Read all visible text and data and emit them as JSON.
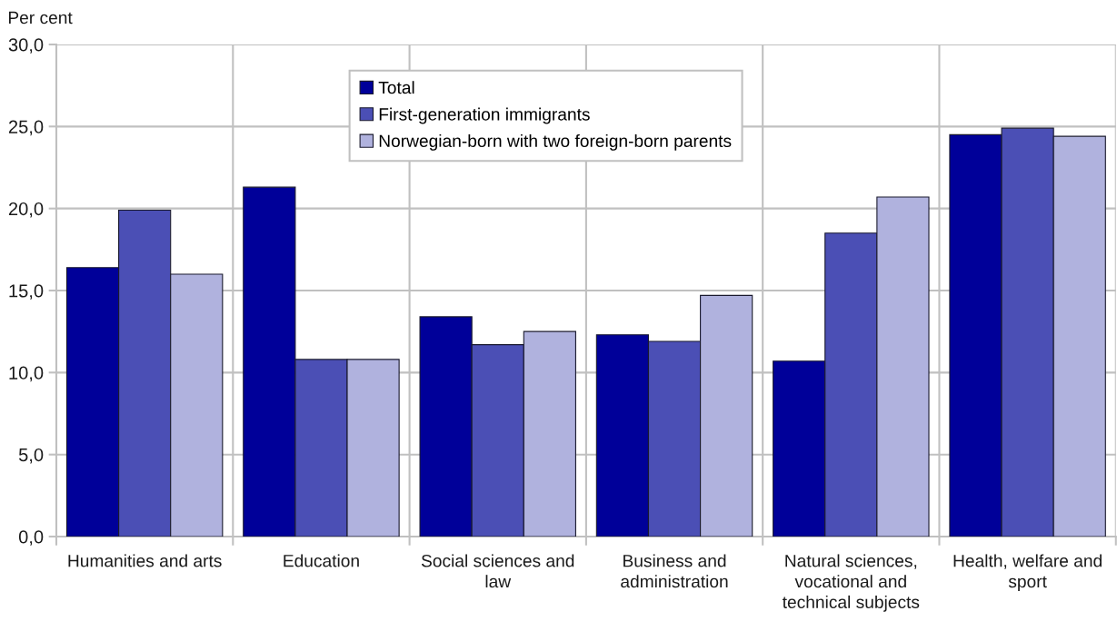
{
  "chart_data": {
    "type": "bar",
    "ylabel": "Per cent",
    "categories": [
      "Humanities and arts",
      "Education",
      "Social sciences and\nlaw",
      "Business and\nadministration",
      "Natural sciences,\nvocational and\ntechnical subjects",
      "Health, welfare and\nsport"
    ],
    "series": [
      {
        "name": "Total",
        "color": "#000099",
        "values": [
          16.4,
          21.3,
          13.4,
          12.3,
          10.7,
          24.5
        ]
      },
      {
        "name": "First-generation immigrants",
        "color": "#4b4fb5",
        "values": [
          19.9,
          10.8,
          11.7,
          11.9,
          18.5,
          24.9
        ]
      },
      {
        "name": "Norwegian-born with two foreign-born parents",
        "color": "#b0b2de",
        "values": [
          16.0,
          10.8,
          12.5,
          14.7,
          20.7,
          24.4
        ]
      }
    ],
    "ylim": [
      0,
      30
    ],
    "yticks": [
      {
        "value": 0,
        "label": "0,0"
      },
      {
        "value": 5,
        "label": "5,0"
      },
      {
        "value": 10,
        "label": "10,0"
      },
      {
        "value": 15,
        "label": "15,0"
      },
      {
        "value": 20,
        "label": "20,0"
      },
      {
        "value": 25,
        "label": "25,0"
      },
      {
        "value": 30,
        "label": "30,0"
      }
    ],
    "grid": true,
    "legend": "top"
  }
}
